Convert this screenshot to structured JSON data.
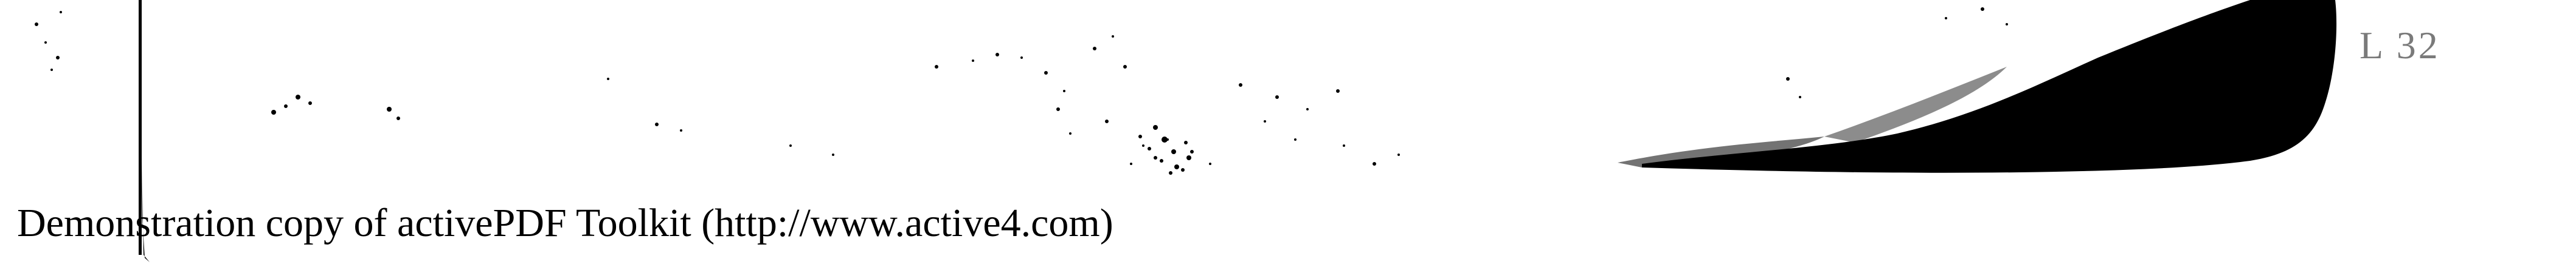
{
  "page": {
    "page_number": "L 32",
    "footer_notice": "Demonstration copy of activePDF Toolkit (http://www.active4.com)"
  },
  "colors": {
    "ink": "#000000",
    "faded_ink": "#7a7a7a",
    "paper": "#ffffff"
  }
}
